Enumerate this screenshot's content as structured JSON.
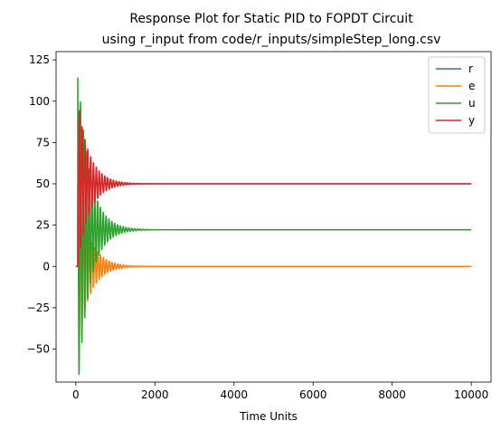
{
  "chart_data": {
    "type": "line",
    "title": "Response Plot for Static PID to FOPDT Circuit",
    "subtitle": "using r_input from code/r_inputs/simpleStep_long.csv",
    "xlabel": "Time Units",
    "ylabel": "",
    "xlim": [
      -500,
      10500
    ],
    "ylim": [
      -70,
      130
    ],
    "xticks": [
      0,
      2000,
      4000,
      6000,
      8000,
      10000
    ],
    "xtick_labels": [
      "0",
      "2000",
      "4000",
      "6000",
      "8000",
      "10000"
    ],
    "yticks": [
      -50,
      -25,
      0,
      25,
      50,
      75,
      100,
      125
    ],
    "ytick_labels": [
      "−50",
      "−25",
      "0",
      "25",
      "50",
      "75",
      "100",
      "125"
    ],
    "grid": false,
    "legend_position": "top-right",
    "colors": {
      "r": "#1f77b4",
      "e": "#ff7f0e",
      "u": "#2ca02c",
      "y": "#d62728"
    },
    "series": [
      {
        "name": "r",
        "final_value": 50,
        "step_time": 50,
        "initial_value": 0,
        "t_end": 10000
      },
      {
        "name": "e",
        "final_value": 0,
        "peak": 50,
        "trough": -50,
        "t_end": 10000
      },
      {
        "name": "u",
        "final_value": 22.2,
        "peak": 120,
        "trough": -61,
        "t_end": 10000
      },
      {
        "name": "y",
        "final_value": 50,
        "peak": 100,
        "trough": 0,
        "t_end": 10000
      }
    ]
  }
}
